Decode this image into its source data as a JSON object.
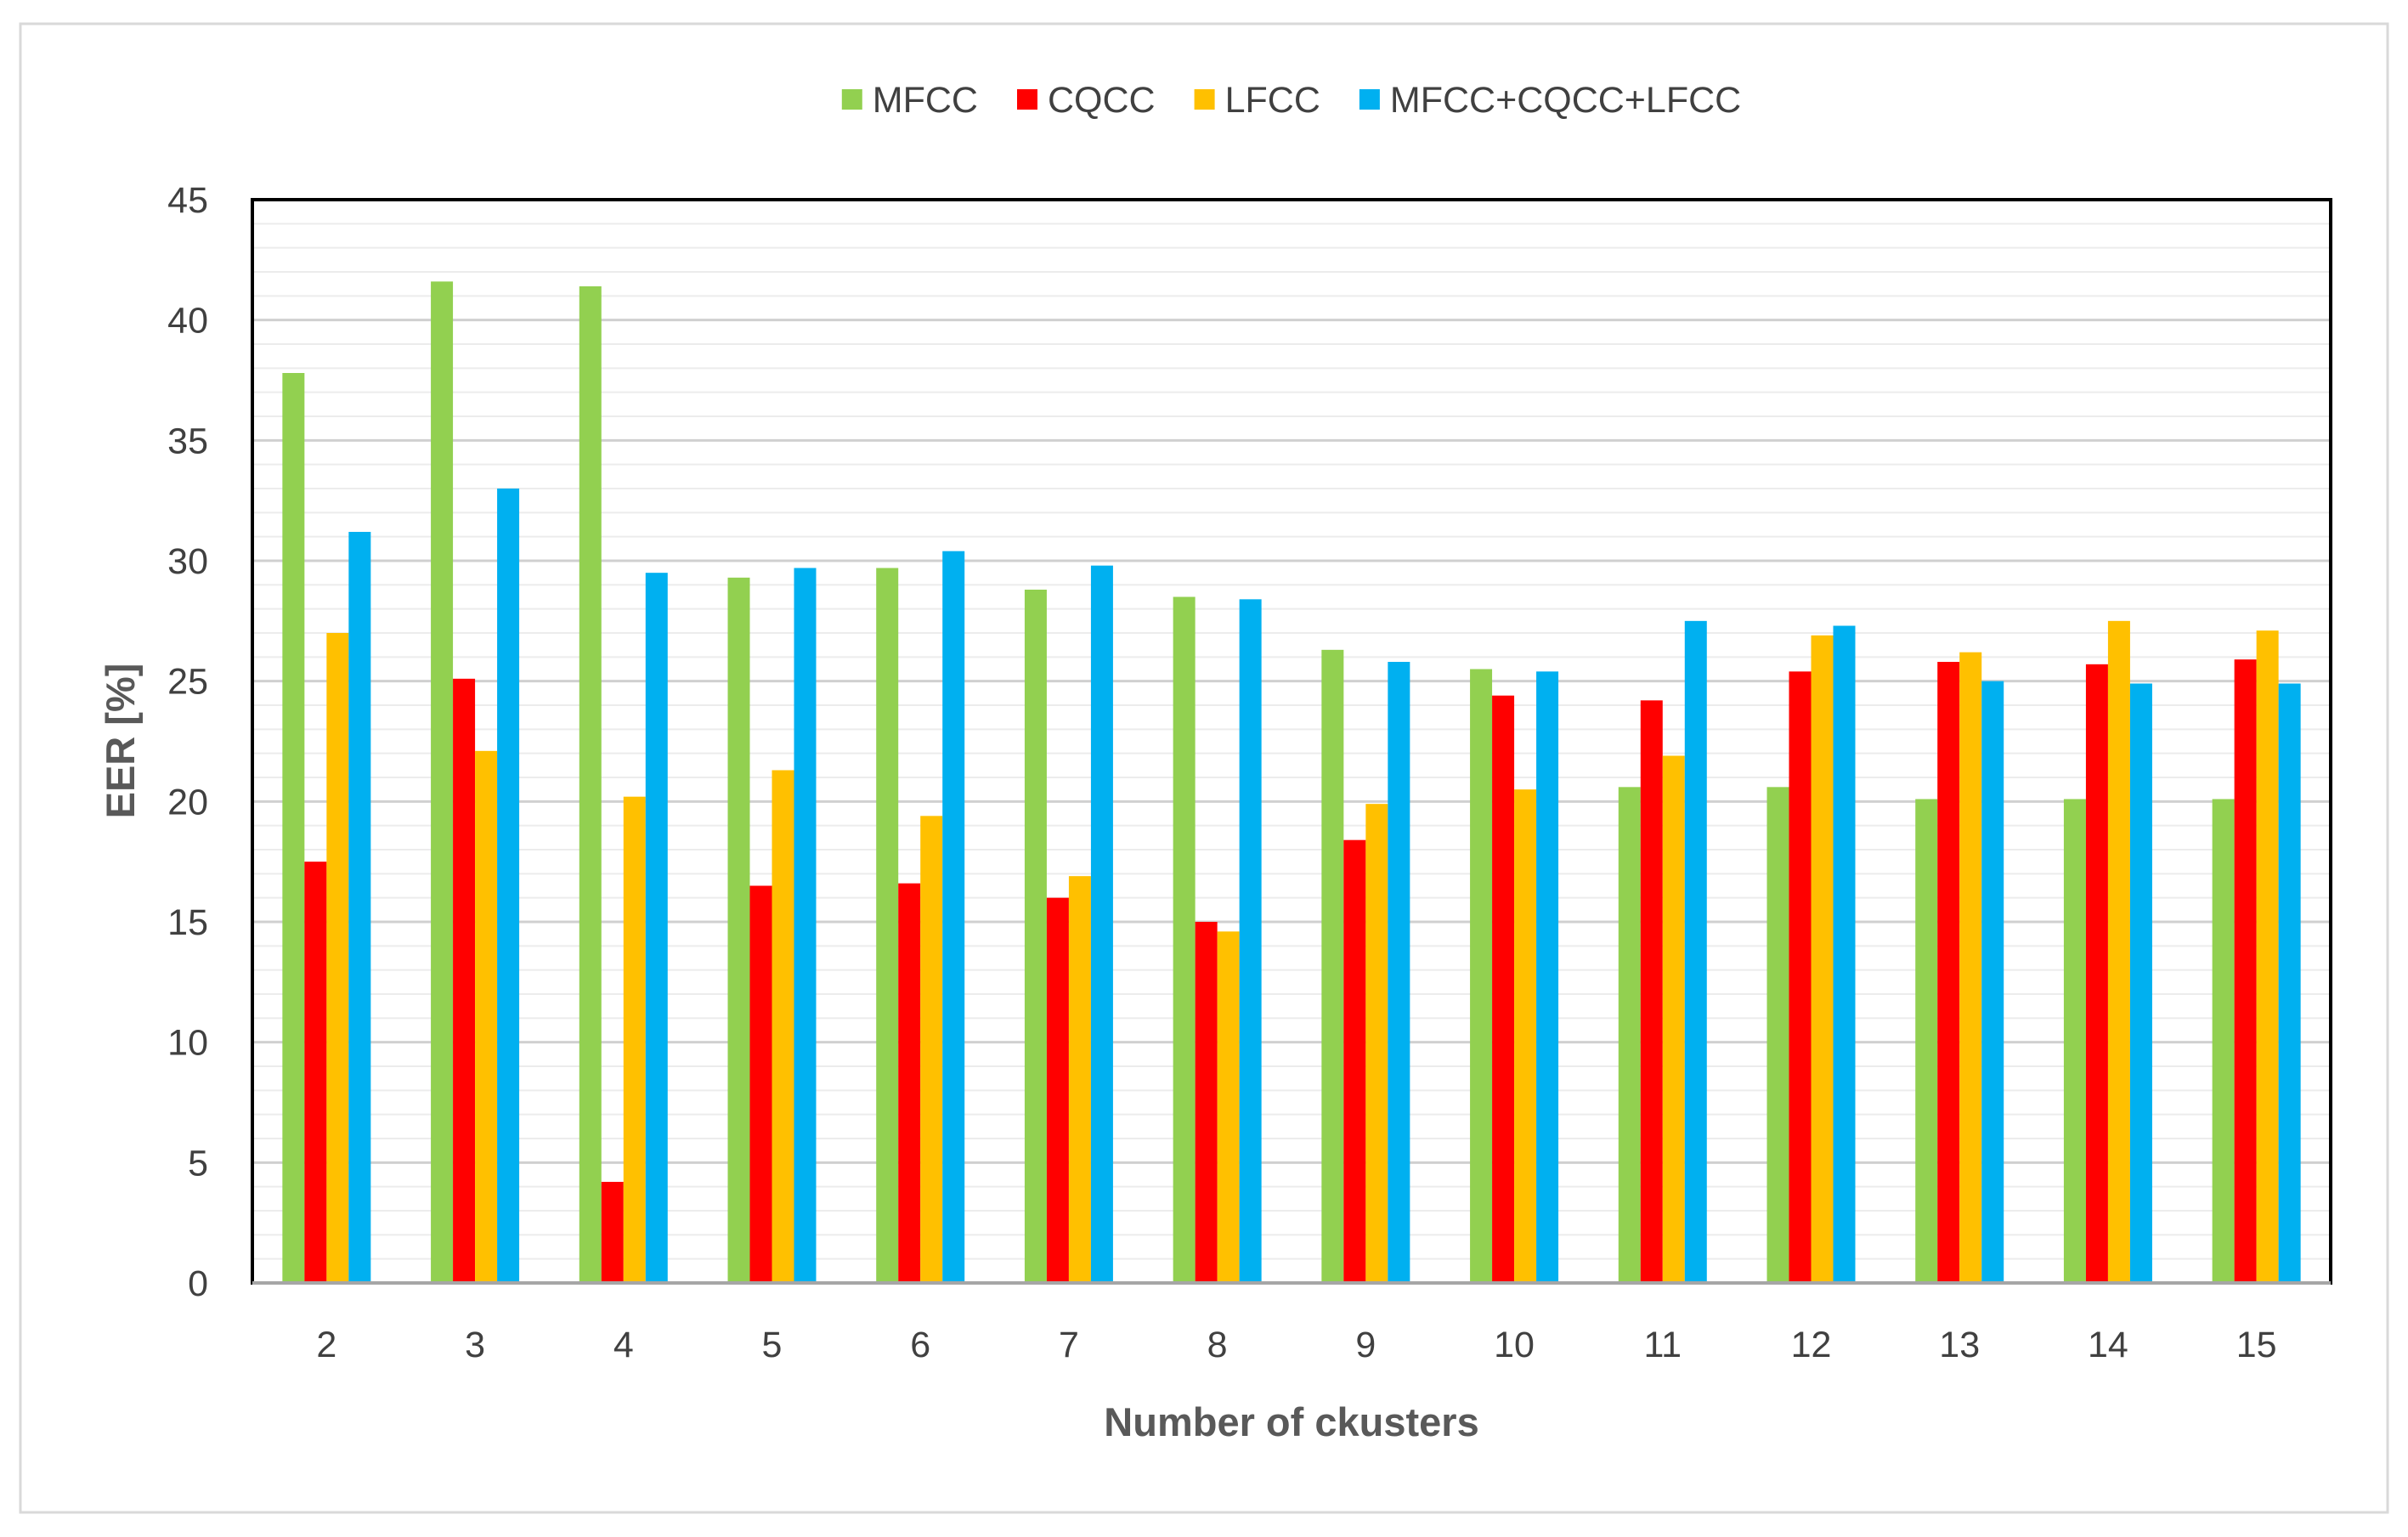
{
  "chart_data": {
    "type": "bar",
    "title": "",
    "xlabel": "Number of ckusters",
    "ylabel": "EER [%]",
    "ylim": [
      0,
      45
    ],
    "yticks": [
      0,
      5,
      10,
      15,
      20,
      25,
      30,
      35,
      40,
      45
    ],
    "categories": [
      "2",
      "3",
      "4",
      "5",
      "6",
      "7",
      "8",
      "9",
      "10",
      "11",
      "12",
      "13",
      "14",
      "15"
    ],
    "legend_position": "top-center",
    "grid": true,
    "series": [
      {
        "name": "MFCC",
        "color": "#92d050",
        "values": [
          37.8,
          41.6,
          41.4,
          29.3,
          29.7,
          28.8,
          28.5,
          26.3,
          25.5,
          20.6,
          20.6,
          20.1,
          20.1,
          20.1
        ]
      },
      {
        "name": "CQCC",
        "color": "#ff0000",
        "values": [
          17.5,
          25.1,
          4.2,
          16.5,
          16.6,
          16.0,
          15.0,
          18.4,
          24.4,
          24.2,
          25.4,
          25.8,
          25.7,
          25.9
        ]
      },
      {
        "name": "LFCC",
        "color": "#ffc000",
        "values": [
          27.0,
          22.1,
          20.2,
          21.3,
          19.4,
          16.9,
          14.6,
          19.9,
          20.5,
          21.9,
          26.9,
          26.2,
          27.5,
          27.1
        ]
      },
      {
        "name": "MFCC+CQCC+LFCC",
        "color": "#00b0f0",
        "values": [
          31.2,
          33.0,
          29.5,
          29.7,
          30.4,
          29.8,
          28.4,
          25.8,
          25.4,
          27.5,
          27.3,
          25.0,
          24.9,
          24.9
        ]
      }
    ]
  }
}
